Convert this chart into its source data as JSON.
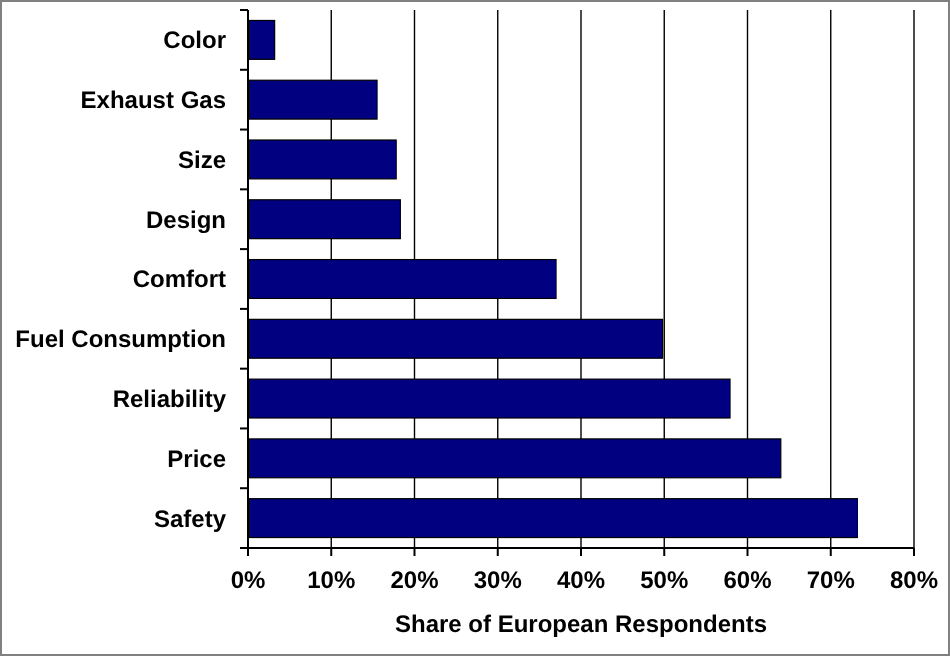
{
  "chart_data": {
    "type": "bar",
    "orientation": "horizontal",
    "xlabel": "Share of European Respondents",
    "categories": [
      "Color",
      "Exhaust Gas",
      "Size",
      "Design",
      "Comfort",
      "Fuel Consumption",
      "Reliability",
      "Price",
      "Safety"
    ],
    "values": [
      3.2,
      15.5,
      17.8,
      18.3,
      37,
      49.8,
      57.9,
      64,
      73.2
    ],
    "color": "#000080",
    "xlim": [
      0,
      80
    ],
    "xticks": [
      {
        "value": 0,
        "label": "0%"
      },
      {
        "value": 10,
        "label": "10%"
      },
      {
        "value": 20,
        "label": "20%"
      },
      {
        "value": 30,
        "label": "30%"
      },
      {
        "value": 40,
        "label": "40%"
      },
      {
        "value": 50,
        "label": "50%"
      },
      {
        "value": 60,
        "label": "60%"
      },
      {
        "value": 70,
        "label": "70%"
      },
      {
        "value": 80,
        "label": "80%"
      }
    ],
    "grid": "x"
  }
}
